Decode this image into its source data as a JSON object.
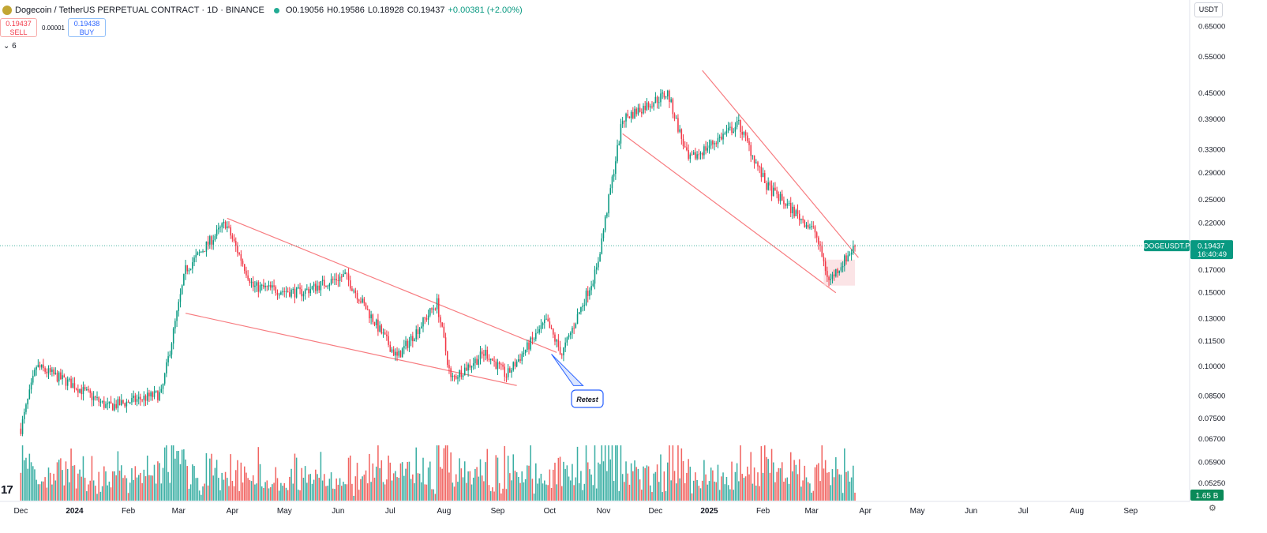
{
  "header": {
    "symbol_title": "Dogecoin / TetherUS PERPETUAL CONTRACT · 1D · BINANCE",
    "open": "O0.19056",
    "high": "H0.19586",
    "low": "L0.18928",
    "close": "C0.19437",
    "change": "+0.00381 (+2.00%)"
  },
  "trade": {
    "sell_price": "0.19437",
    "sell_label": "SELL",
    "spread": "0.00001",
    "buy_price": "0.19438",
    "buy_label": "BUY"
  },
  "indicators_collapsed": "⌄ 6",
  "currency_button": "USDT",
  "tv_logo": "17",
  "settings_icon": "⚙",
  "colors": {
    "up": "#089981",
    "down": "#f23645",
    "volume_up": "#26a69a",
    "volume_down": "#ef5350",
    "trendline": "#f77c80",
    "price_line": "#089981",
    "annotation": "#2962ff",
    "highlight_box": "#f9d9dc"
  },
  "chart_data": {
    "type": "candlestick",
    "scale": "log",
    "y_tick_labels": [
      "0.65000",
      "0.55000",
      "0.45000",
      "0.39000",
      "0.33000",
      "0.29000",
      "0.25000",
      "0.22000",
      "0.17000",
      "0.15000",
      "0.13000",
      "0.11500",
      "0.10000",
      "0.08500",
      "0.07500",
      "0.06700",
      "0.05900",
      "0.05250"
    ],
    "x_tick_labels": [
      "Dec",
      "2024",
      "Feb",
      "Mar",
      "Apr",
      "May",
      "Jun",
      "Jul",
      "Aug",
      "Sep",
      "Oct",
      "Nov",
      "Dec",
      "2025",
      "Feb",
      "Mar",
      "Apr",
      "May",
      "Jun",
      "Jul",
      "Aug",
      "Sep"
    ],
    "last_price_label": {
      "symbol": "DOGEUSDT.P",
      "price": "0.19437",
      "countdown": "16:40:49"
    },
    "volume_label": "1.65 B",
    "annotation": "Retest",
    "series": [
      {
        "date": "2023-12-01",
        "close": 0.071
      },
      {
        "date": "2023-12-10",
        "close": 0.1
      },
      {
        "date": "2024-01-01",
        "close": 0.09
      },
      {
        "date": "2024-01-20",
        "close": 0.08
      },
      {
        "date": "2024-02-20",
        "close": 0.086
      },
      {
        "date": "2024-03-05",
        "close": 0.17
      },
      {
        "date": "2024-03-28",
        "close": 0.22
      },
      {
        "date": "2024-04-13",
        "close": 0.155
      },
      {
        "date": "2024-05-10",
        "close": 0.15
      },
      {
        "date": "2024-06-05",
        "close": 0.165
      },
      {
        "date": "2024-07-05",
        "close": 0.105
      },
      {
        "date": "2024-07-28",
        "close": 0.142
      },
      {
        "date": "2024-08-05",
        "close": 0.093
      },
      {
        "date": "2024-08-25",
        "close": 0.108
      },
      {
        "date": "2024-09-06",
        "close": 0.095
      },
      {
        "date": "2024-09-29",
        "close": 0.128
      },
      {
        "date": "2024-10-08",
        "close": 0.107
      },
      {
        "date": "2024-10-28",
        "close": 0.17
      },
      {
        "date": "2024-11-12",
        "close": 0.39
      },
      {
        "date": "2024-12-08",
        "close": 0.45
      },
      {
        "date": "2024-12-20",
        "close": 0.31
      },
      {
        "date": "2025-01-18",
        "close": 0.38
      },
      {
        "date": "2025-02-03",
        "close": 0.27
      },
      {
        "date": "2025-03-03",
        "close": 0.21
      },
      {
        "date": "2025-03-11",
        "close": 0.16
      },
      {
        "date": "2025-03-26",
        "close": 0.194
      }
    ]
  }
}
